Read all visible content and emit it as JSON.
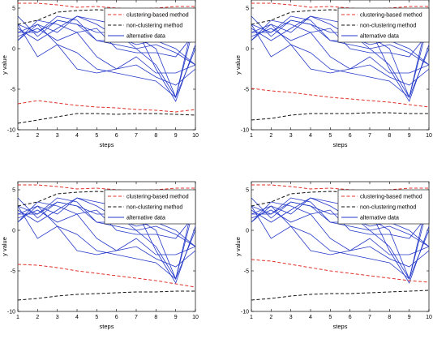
{
  "colors": {
    "upper": "#e0302a",
    "lower": "#111111",
    "alt": "#2338c8"
  },
  "chart_data": [
    {
      "type": "line",
      "xlabel": "steps",
      "ylabel": "y value",
      "xlim": [
        1,
        10
      ],
      "ylim": [
        -10,
        6
      ],
      "x_ticks": [
        1,
        2,
        3,
        4,
        5,
        6,
        7,
        8,
        9,
        10
      ],
      "y_ticks": [
        -10,
        -5,
        0,
        5
      ],
      "legend": {
        "position": "top-right",
        "entries": [
          "clustering-based method",
          "non-clustering method",
          "alternative data"
        ]
      },
      "bounds": [
        {
          "name": "clustering-based method",
          "style": "dashed",
          "color": "upper",
          "x": [
            1,
            2,
            3,
            4,
            5,
            6,
            7,
            8,
            9,
            10
          ],
          "y": [
            5.6,
            5.6,
            5.4,
            5.1,
            5.2,
            5.0,
            4.9,
            5.0,
            5.2,
            5.2
          ]
        },
        {
          "name": "clustering-based method",
          "style": "dashed",
          "color": "upper",
          "x": [
            1,
            2,
            3,
            4,
            5,
            6,
            7,
            8,
            9,
            10
          ],
          "y": [
            -6.8,
            -6.4,
            -6.7,
            -7.0,
            -7.2,
            -7.3,
            -7.5,
            -7.6,
            -7.8,
            -7.5
          ]
        },
        {
          "name": "non-clustering method",
          "style": "dashed",
          "color": "lower",
          "x": [
            1,
            2,
            3,
            4,
            5,
            6,
            7,
            8,
            9,
            10
          ],
          "y": [
            3.0,
            3.5,
            4.5,
            4.7,
            4.8,
            4.7,
            4.5,
            4.2,
            4.3,
            4.0
          ]
        },
        {
          "name": "non-clustering method",
          "style": "dashed",
          "color": "lower",
          "x": [
            1,
            2,
            3,
            4,
            5,
            6,
            7,
            8,
            9,
            10
          ],
          "y": [
            -9.2,
            -8.8,
            -8.4,
            -8.0,
            -8.0,
            -8.1,
            -8.0,
            -8.0,
            -8.1,
            -8.2
          ]
        }
      ],
      "alternatives": [
        [
          2.0,
          3.0,
          2.0,
          4.0,
          3.0,
          1.5,
          0.5,
          1.0,
          0.0,
          -2.0
        ],
        [
          3.0,
          2.0,
          4.0,
          3.5,
          1.0,
          0.5,
          0.0,
          -2.0,
          -6.0,
          3.5
        ],
        [
          1.5,
          2.5,
          1.0,
          2.0,
          -1.0,
          -2.5,
          -1.0,
          -3.0,
          -3.0,
          -2.0
        ],
        [
          1.0,
          3.0,
          0.5,
          -0.5,
          -2.5,
          -3.0,
          -3.5,
          -4.0,
          -6.0,
          0.0
        ],
        [
          2.5,
          1.0,
          2.5,
          4.0,
          3.5,
          3.0,
          2.5,
          -2.5,
          -6.5,
          0.5
        ],
        [
          2.0,
          2.0,
          3.5,
          3.0,
          2.0,
          2.0,
          0.0,
          0.5,
          -0.5,
          -2.0
        ],
        [
          4.0,
          1.5,
          3.5,
          3.0,
          1.0,
          1.0,
          1.5,
          0.0,
          -6.0,
          4.5
        ],
        [
          1.0,
          3.5,
          3.0,
          2.0,
          2.5,
          0.0,
          -0.5,
          -0.5,
          -1.0,
          2.0
        ],
        [
          3.0,
          -1.0,
          0.5,
          -2.5,
          -3.0,
          -2.5,
          -2.0,
          -3.5,
          -4.5,
          -2.5
        ]
      ]
    },
    {
      "type": "line",
      "xlabel": "steps",
      "ylabel": "y value",
      "xlim": [
        1,
        10
      ],
      "ylim": [
        -10,
        6
      ],
      "x_ticks": [
        1,
        2,
        3,
        4,
        5,
        6,
        7,
        8,
        9,
        10
      ],
      "y_ticks": [
        -10,
        -5,
        0,
        5
      ],
      "legend": {
        "position": "top-right",
        "entries": [
          "clustering-based method",
          "non-clustering method",
          "alternative data"
        ]
      },
      "bounds": [
        {
          "name": "clustering-based method",
          "style": "dashed",
          "color": "upper",
          "x": [
            1,
            2,
            3,
            4,
            5,
            6,
            7,
            8,
            9,
            10
          ],
          "y": [
            5.6,
            5.6,
            5.4,
            5.1,
            5.2,
            5.0,
            4.9,
            5.0,
            5.2,
            5.2
          ]
        },
        {
          "name": "clustering-based method",
          "style": "dashed",
          "color": "upper",
          "x": [
            1,
            2,
            3,
            4,
            5,
            6,
            7,
            8,
            9,
            10
          ],
          "y": [
            -4.9,
            -5.2,
            -5.4,
            -5.7,
            -6.0,
            -6.2,
            -6.4,
            -6.6,
            -6.9,
            -7.2
          ]
        },
        {
          "name": "non-clustering method",
          "style": "dashed",
          "color": "lower",
          "x": [
            1,
            2,
            3,
            4,
            5,
            6,
            7,
            8,
            9,
            10
          ],
          "y": [
            3.0,
            3.5,
            4.5,
            4.7,
            4.8,
            4.7,
            4.5,
            4.2,
            4.3,
            4.0
          ]
        },
        {
          "name": "non-clustering method",
          "style": "dashed",
          "color": "lower",
          "x": [
            1,
            2,
            3,
            4,
            5,
            6,
            7,
            8,
            9,
            10
          ],
          "y": [
            -8.8,
            -8.6,
            -8.2,
            -8.0,
            -8.0,
            -8.0,
            -7.9,
            -7.9,
            -8.0,
            -8.0
          ]
        }
      ],
      "alternatives": [
        [
          2.0,
          3.0,
          2.0,
          4.0,
          3.0,
          1.5,
          0.5,
          1.0,
          0.0,
          -2.0
        ],
        [
          3.0,
          2.0,
          4.0,
          3.5,
          1.0,
          0.5,
          0.0,
          -2.0,
          -6.0,
          3.5
        ],
        [
          1.5,
          2.5,
          1.0,
          2.0,
          -1.0,
          -2.5,
          -1.0,
          -3.0,
          -3.0,
          -2.0
        ],
        [
          1.0,
          3.0,
          0.5,
          -0.5,
          -2.5,
          -3.0,
          -3.5,
          -4.0,
          -6.0,
          0.0
        ],
        [
          2.5,
          1.0,
          2.5,
          4.0,
          3.5,
          3.0,
          2.5,
          -2.5,
          -6.5,
          0.5
        ],
        [
          2.0,
          2.0,
          3.5,
          3.0,
          2.0,
          2.0,
          0.0,
          0.5,
          -0.5,
          -2.0
        ],
        [
          4.0,
          1.5,
          3.5,
          3.0,
          1.0,
          1.0,
          1.5,
          0.0,
          -6.0,
          4.5
        ],
        [
          1.0,
          3.5,
          3.0,
          2.0,
          2.5,
          0.0,
          -0.5,
          -0.5,
          -1.0,
          2.0
        ],
        [
          3.0,
          -1.0,
          0.5,
          -2.5,
          -3.0,
          -2.5,
          -2.0,
          -3.5,
          -4.5,
          -2.5
        ]
      ]
    },
    {
      "type": "line",
      "xlabel": "steps",
      "ylabel": "y value",
      "xlim": [
        1,
        10
      ],
      "ylim": [
        -10,
        6
      ],
      "x_ticks": [
        1,
        2,
        3,
        4,
        5,
        6,
        7,
        8,
        9,
        10
      ],
      "y_ticks": [
        -10,
        -5,
        0,
        5
      ],
      "legend": {
        "position": "top-right",
        "entries": [
          "clustering-based method",
          "non-clustering method",
          "alternative data"
        ]
      },
      "bounds": [
        {
          "name": "clustering-based method",
          "style": "dashed",
          "color": "upper",
          "x": [
            1,
            2,
            3,
            4,
            5,
            6,
            7,
            8,
            9,
            10
          ],
          "y": [
            5.6,
            5.6,
            5.4,
            5.1,
            5.2,
            5.0,
            4.9,
            5.0,
            5.2,
            5.2
          ]
        },
        {
          "name": "clustering-based method",
          "style": "dashed",
          "color": "upper",
          "x": [
            1,
            2,
            3,
            4,
            5,
            6,
            7,
            8,
            9,
            10
          ],
          "y": [
            -4.2,
            -4.3,
            -4.6,
            -5.0,
            -5.3,
            -5.6,
            -5.9,
            -6.2,
            -6.6,
            -7.0
          ]
        },
        {
          "name": "non-clustering method",
          "style": "dashed",
          "color": "lower",
          "x": [
            1,
            2,
            3,
            4,
            5,
            6,
            7,
            8,
            9,
            10
          ],
          "y": [
            3.0,
            3.5,
            4.5,
            4.7,
            4.8,
            4.7,
            4.5,
            4.2,
            4.3,
            4.0
          ]
        },
        {
          "name": "non-clustering method",
          "style": "dashed",
          "color": "lower",
          "x": [
            1,
            2,
            3,
            4,
            5,
            6,
            7,
            8,
            9,
            10
          ],
          "y": [
            -8.6,
            -8.4,
            -8.1,
            -7.9,
            -7.8,
            -7.7,
            -7.6,
            -7.6,
            -7.5,
            -7.5
          ]
        }
      ],
      "alternatives": [
        [
          2.0,
          3.0,
          2.0,
          4.0,
          3.0,
          1.5,
          0.5,
          1.0,
          0.0,
          -2.0
        ],
        [
          3.0,
          2.0,
          4.0,
          3.5,
          1.0,
          0.5,
          0.0,
          -2.0,
          -6.0,
          3.5
        ],
        [
          1.5,
          2.5,
          1.0,
          2.0,
          -1.0,
          -2.5,
          -1.0,
          -3.0,
          -3.0,
          -2.0
        ],
        [
          1.0,
          3.0,
          0.5,
          -0.5,
          -2.5,
          -3.0,
          -3.5,
          -4.0,
          -6.0,
          0.0
        ],
        [
          2.5,
          1.0,
          2.5,
          4.0,
          3.5,
          3.0,
          2.5,
          -2.5,
          -6.5,
          0.5
        ],
        [
          2.0,
          2.0,
          3.5,
          3.0,
          2.0,
          2.0,
          0.0,
          0.5,
          -0.5,
          -2.0
        ],
        [
          4.0,
          1.5,
          3.5,
          3.0,
          1.0,
          1.0,
          1.5,
          0.0,
          -6.0,
          4.5
        ],
        [
          1.0,
          3.5,
          3.0,
          2.0,
          2.5,
          0.0,
          -0.5,
          -0.5,
          -1.0,
          2.0
        ],
        [
          3.0,
          -1.0,
          0.5,
          -2.5,
          -3.0,
          -2.5,
          -2.0,
          -3.5,
          -4.5,
          -2.5
        ]
      ]
    },
    {
      "type": "line",
      "xlabel": "steps",
      "ylabel": "y value",
      "xlim": [
        1,
        10
      ],
      "ylim": [
        -10,
        6
      ],
      "x_ticks": [
        1,
        2,
        3,
        4,
        5,
        6,
        7,
        8,
        9,
        10
      ],
      "y_ticks": [
        -10,
        -5,
        0,
        5
      ],
      "legend": {
        "position": "top-right",
        "entries": [
          "clustering-based method",
          "non-clustering method",
          "alternative data"
        ]
      },
      "bounds": [
        {
          "name": "clustering-based method",
          "style": "dashed",
          "color": "upper",
          "x": [
            1,
            2,
            3,
            4,
            5,
            6,
            7,
            8,
            9,
            10
          ],
          "y": [
            5.6,
            5.6,
            5.4,
            5.1,
            5.2,
            5.0,
            4.9,
            5.0,
            5.2,
            5.2
          ]
        },
        {
          "name": "clustering-based method",
          "style": "dashed",
          "color": "upper",
          "x": [
            1,
            2,
            3,
            4,
            5,
            6,
            7,
            8,
            9,
            10
          ],
          "y": [
            -3.6,
            -3.8,
            -4.2,
            -4.6,
            -5.0,
            -5.3,
            -5.6,
            -5.9,
            -6.2,
            -6.4
          ]
        },
        {
          "name": "non-clustering method",
          "style": "dashed",
          "color": "lower",
          "x": [
            1,
            2,
            3,
            4,
            5,
            6,
            7,
            8,
            9,
            10
          ],
          "y": [
            3.0,
            3.5,
            4.5,
            4.7,
            4.8,
            4.7,
            4.5,
            4.2,
            4.3,
            4.0
          ]
        },
        {
          "name": "non-clustering method",
          "style": "dashed",
          "color": "lower",
          "x": [
            1,
            2,
            3,
            4,
            5,
            6,
            7,
            8,
            9,
            10
          ],
          "y": [
            -8.6,
            -8.4,
            -8.1,
            -7.9,
            -7.8,
            -7.8,
            -7.7,
            -7.6,
            -7.5,
            -7.4
          ]
        }
      ],
      "alternatives": [
        [
          2.0,
          3.0,
          2.0,
          4.0,
          3.0,
          1.5,
          0.5,
          1.0,
          0.0,
          -2.0
        ],
        [
          3.0,
          2.0,
          4.0,
          3.5,
          1.0,
          0.5,
          0.0,
          -2.0,
          -6.0,
          3.5
        ],
        [
          1.5,
          2.5,
          1.0,
          2.0,
          -1.0,
          -2.5,
          -1.0,
          -3.0,
          -3.0,
          -2.0
        ],
        [
          1.0,
          3.0,
          0.5,
          -0.5,
          -2.5,
          -3.0,
          -3.5,
          -4.0,
          -6.0,
          0.0
        ],
        [
          2.5,
          1.0,
          2.5,
          4.0,
          3.5,
          3.0,
          2.5,
          -2.5,
          -6.5,
          0.5
        ],
        [
          2.0,
          2.0,
          3.5,
          3.0,
          2.0,
          2.0,
          0.0,
          0.5,
          -0.5,
          -2.0
        ],
        [
          4.0,
          1.5,
          3.5,
          3.0,
          1.0,
          1.0,
          1.5,
          0.0,
          -6.0,
          4.5
        ],
        [
          1.0,
          3.5,
          3.0,
          2.0,
          2.5,
          0.0,
          -0.5,
          -0.5,
          -1.0,
          2.0
        ],
        [
          3.0,
          -1.0,
          0.5,
          -2.5,
          -3.0,
          -2.5,
          -2.0,
          -3.5,
          -4.5,
          -2.5
        ]
      ]
    }
  ]
}
